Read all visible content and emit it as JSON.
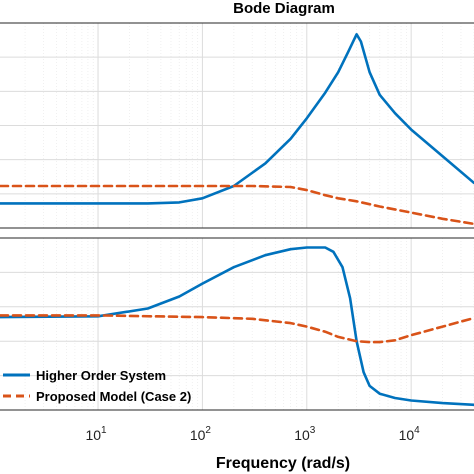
{
  "chart_data": [
    {
      "panel": "magnitude",
      "type": "line",
      "title": "Bode Diagram",
      "x_scale": "log",
      "xlim": [
        1.15,
        40000
      ],
      "ylim": [
        0,
        10
      ],
      "grid": true,
      "series": [
        {
          "name": "Higher Order System",
          "color": "#0072BD",
          "style": "solid",
          "x": [
            1.15,
            10,
            30,
            60,
            100,
            200,
            400,
            700,
            1000,
            1500,
            2000,
            2500,
            3000,
            3300,
            4000,
            5000,
            7000,
            10000,
            20000,
            40000
          ],
          "y": [
            1.2,
            1.2,
            1.2,
            1.25,
            1.45,
            2.05,
            3.15,
            4.35,
            5.35,
            6.6,
            7.6,
            8.6,
            9.45,
            9.1,
            7.6,
            6.5,
            5.6,
            4.8,
            3.5,
            2.2
          ]
        },
        {
          "name": "Proposed Model (Case 2)",
          "color": "#D95319",
          "style": "dashed",
          "x": [
            1.15,
            10,
            100,
            300,
            700,
            1000,
            1500,
            2000,
            3000,
            5000,
            10000,
            20000,
            40000
          ],
          "y": [
            2.05,
            2.05,
            2.05,
            2.05,
            2.0,
            1.85,
            1.6,
            1.45,
            1.3,
            1.05,
            0.75,
            0.45,
            0.2
          ]
        }
      ]
    },
    {
      "panel": "phase",
      "type": "line",
      "x_scale": "log",
      "xlim": [
        1.15,
        40000
      ],
      "ylim": [
        0,
        10
      ],
      "xlabel": "Frequency  (rad/s)",
      "xticks": [
        {
          "value": 10,
          "base": "10",
          "exp": "1"
        },
        {
          "value": 100,
          "base": "10",
          "exp": "2"
        },
        {
          "value": 1000,
          "base": "10",
          "exp": "3"
        },
        {
          "value": 10000,
          "base": "10",
          "exp": "4"
        }
      ],
      "grid": true,
      "legend": {
        "position": "bottom-left",
        "entries": [
          "Higher Order System",
          "Proposed Model (Case 2)"
        ]
      },
      "series": [
        {
          "name": "Higher Order System",
          "color": "#0072BD",
          "style": "solid",
          "x": [
            1.15,
            10,
            30,
            60,
            100,
            200,
            400,
            700,
            1000,
            1500,
            1800,
            2200,
            2600,
            3000,
            3500,
            4000,
            5000,
            7000,
            10000,
            20000,
            40000
          ],
          "y": [
            5.4,
            5.45,
            5.9,
            6.6,
            7.35,
            8.3,
            9.0,
            9.35,
            9.45,
            9.45,
            9.2,
            8.3,
            6.5,
            4.0,
            2.2,
            1.4,
            0.95,
            0.7,
            0.55,
            0.4,
            0.3
          ]
        },
        {
          "name": "Proposed Model (Case 2)",
          "color": "#D95319",
          "style": "dashed",
          "x": [
            1.15,
            10,
            100,
            300,
            700,
            1000,
            1500,
            2000,
            3000,
            4000,
            5000,
            7000,
            10000,
            20000,
            40000
          ],
          "y": [
            5.5,
            5.5,
            5.4,
            5.3,
            5.05,
            4.85,
            4.55,
            4.25,
            4.0,
            3.95,
            3.95,
            4.05,
            4.35,
            4.85,
            5.35
          ]
        }
      ]
    }
  ]
}
